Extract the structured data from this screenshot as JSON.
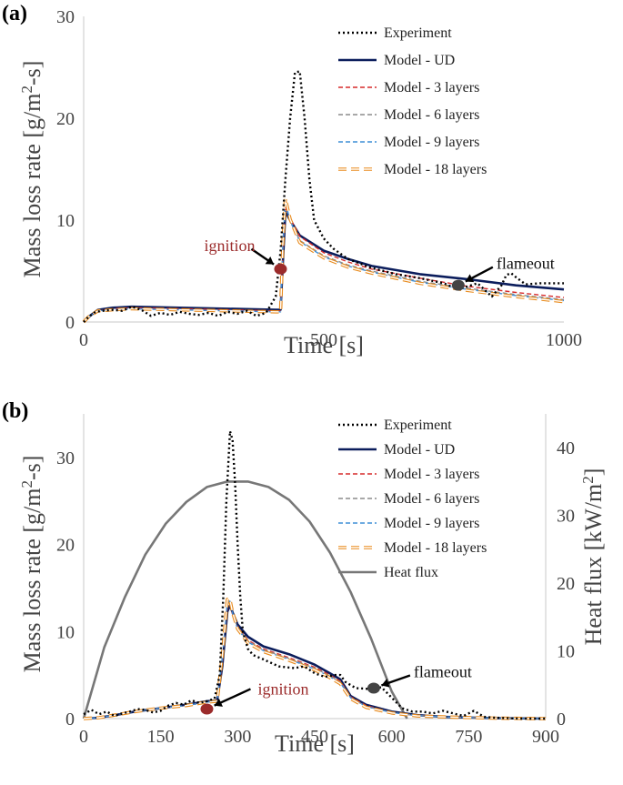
{
  "chart_data": [
    {
      "panel": "(a)",
      "type": "line",
      "xlabel": "Time [s]",
      "ylabel": "Mass loss rate [g/m2-s]",
      "ylabel_parts": [
        "Mass loss rate [g/m",
        "2",
        "-s]"
      ],
      "xlim": [
        0,
        1000
      ],
      "ylim": [
        0,
        30
      ],
      "xticks": [
        0,
        500,
        1000
      ],
      "yticks": [
        0,
        10,
        20,
        30
      ],
      "legend_position": "top-right",
      "series": [
        {
          "name": "Experiment",
          "color": "#000000",
          "style": "dotted",
          "x": [
            0,
            10,
            25,
            40,
            60,
            80,
            100,
            120,
            140,
            160,
            180,
            200,
            220,
            240,
            260,
            280,
            300,
            320,
            340,
            360,
            380,
            400,
            410,
            420,
            430,
            440,
            450,
            460,
            470,
            480,
            500,
            520,
            550,
            600,
            650,
            700,
            750,
            780,
            820,
            850,
            870,
            880,
            890,
            900,
            920,
            950,
            1000
          ],
          "y": [
            0,
            0.5,
            1.0,
            1.1,
            1.2,
            1.1,
            1.5,
            1.2,
            0.6,
            0.9,
            0.7,
            1.0,
            0.8,
            0.7,
            0.9,
            0.6,
            1.0,
            0.8,
            1.1,
            0.6,
            0.9,
            2.5,
            7,
            14,
            20,
            24.5,
            24.6,
            20,
            14,
            10,
            8.2,
            7.2,
            6.2,
            5.3,
            4.7,
            4.3,
            3.8,
            3.2,
            3.8,
            2.5,
            3.6,
            4.6,
            4.8,
            4.4,
            3.7,
            3.8,
            3.8
          ]
        },
        {
          "name": "Model - UD",
          "color": "#0b1d5c",
          "style": "solid",
          "x": [
            0,
            10,
            30,
            60,
            100,
            200,
            300,
            400,
            410,
            415,
            420,
            430,
            450,
            500,
            550,
            600,
            700,
            800,
            900,
            1000
          ],
          "y": [
            0,
            0.5,
            1.2,
            1.4,
            1.5,
            1.4,
            1.3,
            1.2,
            1.2,
            6,
            10.8,
            10,
            8.5,
            7.0,
            6.2,
            5.5,
            4.7,
            4.2,
            3.6,
            3.2
          ]
        },
        {
          "name": "Model - 3 layers",
          "color": "#d62a2a",
          "style": "dashed",
          "x": [
            0,
            10,
            30,
            60,
            100,
            200,
            300,
            400,
            410,
            415,
            420,
            430,
            450,
            500,
            550,
            600,
            700,
            800,
            900,
            1000
          ],
          "y": [
            0,
            0.5,
            1.1,
            1.3,
            1.4,
            1.3,
            1.2,
            1.1,
            1.1,
            7,
            11.3,
            10.2,
            8.4,
            6.8,
            5.9,
            5.2,
            4.3,
            3.5,
            2.9,
            2.4
          ]
        },
        {
          "name": "Model - 6 layers",
          "color": "#8c8c8c",
          "style": "dashed",
          "x": [
            0,
            10,
            30,
            60,
            100,
            200,
            300,
            400,
            410,
            415,
            420,
            430,
            450,
            500,
            550,
            600,
            700,
            800,
            900,
            1000
          ],
          "y": [
            0,
            0.5,
            1.1,
            1.2,
            1.3,
            1.2,
            1.1,
            1.0,
            1.0,
            7.5,
            11.6,
            10.0,
            8.0,
            6.5,
            5.6,
            5.0,
            4.0,
            3.3,
            2.7,
            2.2
          ]
        },
        {
          "name": "Model - 9 layers",
          "color": "#3f8fd6",
          "style": "dashed",
          "x": [
            0,
            10,
            30,
            60,
            100,
            200,
            300,
            400,
            410,
            415,
            420,
            430,
            450,
            500,
            550,
            600,
            700,
            800,
            900,
            1000
          ],
          "y": [
            0,
            0.5,
            1.1,
            1.2,
            1.3,
            1.2,
            1.1,
            1.0,
            1.0,
            7.8,
            11.8,
            9.9,
            7.9,
            6.4,
            5.5,
            4.9,
            3.9,
            3.2,
            2.6,
            2.1
          ]
        },
        {
          "name": "Model - 18 layers",
          "color": "#e88a1c",
          "style": "dashed-double",
          "x": [
            0,
            10,
            30,
            60,
            100,
            200,
            300,
            400,
            410,
            415,
            420,
            430,
            450,
            500,
            550,
            600,
            700,
            800,
            900,
            1000
          ],
          "y": [
            0,
            0.5,
            1.1,
            1.2,
            1.3,
            1.2,
            1.1,
            1.0,
            1.0,
            8,
            12.1,
            10.1,
            7.8,
            6.3,
            5.4,
            4.8,
            3.8,
            3.1,
            2.5,
            2.0
          ]
        }
      ],
      "annotations": [
        {
          "text": "ignition",
          "color": "#9b2b2b",
          "point": [
            410,
            5.2
          ],
          "marker_color": "#9b2b2b"
        },
        {
          "text": "flameout",
          "color": "#111111",
          "point": [
            780,
            3.6
          ],
          "marker_color": "#444444"
        }
      ]
    },
    {
      "panel": "(b)",
      "type": "line",
      "xlabel": "Time [s]",
      "ylabel": "Mass loss rate [g/m2-s]",
      "ylabel_parts": [
        "Mass loss rate [g/m",
        "2",
        "-s]"
      ],
      "y2label": "Heat flux [kW/m2]",
      "y2label_parts": [
        "Heat flux [kW/m",
        "2",
        "]"
      ],
      "xlim": [
        0,
        900
      ],
      "ylim": [
        0,
        35
      ],
      "y2lim": [
        0,
        45
      ],
      "xticks": [
        0,
        150,
        300,
        450,
        600,
        750,
        900
      ],
      "yticks": [
        0,
        10,
        20,
        30
      ],
      "y2ticks": [
        0,
        10,
        20,
        30,
        40
      ],
      "legend_position": "top-right",
      "series": [
        {
          "name": "Experiment",
          "color": "#000000",
          "style": "dotted",
          "axis": "left",
          "x": [
            0,
            15,
            30,
            45,
            60,
            75,
            90,
            105,
            120,
            135,
            150,
            165,
            180,
            195,
            210,
            225,
            240,
            255,
            265,
            272,
            278,
            285,
            290,
            295,
            300,
            305,
            310,
            320,
            330,
            350,
            380,
            410,
            430,
            450,
            470,
            490,
            500,
            510,
            530,
            560,
            580,
            600,
            620,
            640,
            660,
            680,
            700,
            720,
            740,
            760,
            780,
            800,
            850,
            900
          ],
          "y": [
            0.5,
            1.0,
            0.5,
            0.8,
            0.3,
            0.6,
            0.8,
            1.1,
            1.0,
            0.7,
            0.9,
            1.5,
            1.8,
            1.6,
            2.1,
            1.8,
            2.0,
            2.3,
            5,
            14,
            25,
            33,
            32,
            27,
            20,
            14,
            10,
            8,
            7.3,
            6.8,
            6.0,
            5.8,
            6.0,
            5.2,
            4.8,
            5.0,
            5.0,
            4.2,
            3.5,
            3.4,
            3.6,
            2.4,
            1.2,
            0.8,
            0.8,
            0.6,
            0.9,
            0.6,
            0.3,
            0.9,
            0.2,
            0.1,
            0,
            0
          ]
        },
        {
          "name": "Model - UD",
          "color": "#0b1d5c",
          "style": "solid",
          "axis": "left",
          "x": [
            0,
            30,
            60,
            100,
            150,
            200,
            240,
            260,
            270,
            280,
            285,
            290,
            300,
            320,
            350,
            400,
            450,
            480,
            500,
            520,
            550,
            600,
            650,
            700,
            800,
            900
          ],
          "y": [
            0,
            0.1,
            0.4,
            0.8,
            1.2,
            1.6,
            2.0,
            2.1,
            6,
            12.3,
            13.0,
            12.2,
            10.8,
            9.4,
            8.3,
            7.4,
            6.2,
            5.2,
            4.5,
            2.6,
            1.6,
            0.8,
            0.4,
            0.2,
            0.05,
            0
          ]
        },
        {
          "name": "Model - 3 layers",
          "color": "#d62a2a",
          "style": "dashed",
          "axis": "left",
          "x": [
            0,
            30,
            60,
            100,
            150,
            200,
            240,
            260,
            270,
            280,
            285,
            290,
            300,
            320,
            350,
            400,
            450,
            480,
            500,
            520,
            550,
            600,
            650,
            700,
            800,
            900
          ],
          "y": [
            0,
            0.1,
            0.4,
            0.8,
            1.2,
            1.5,
            1.9,
            2.0,
            6.5,
            12.8,
            13.1,
            12.0,
            10.5,
            9.0,
            8.0,
            7.0,
            5.9,
            5.0,
            4.3,
            2.5,
            1.5,
            0.7,
            0.35,
            0.2,
            0.05,
            0
          ]
        },
        {
          "name": "Model - 6 layers",
          "color": "#8c8c8c",
          "style": "dashed",
          "axis": "left",
          "x": [
            0,
            30,
            60,
            100,
            150,
            200,
            240,
            260,
            270,
            280,
            285,
            290,
            300,
            320,
            350,
            400,
            450,
            480,
            500,
            520,
            550,
            600,
            650,
            700,
            800,
            900
          ],
          "y": [
            0,
            0.1,
            0.4,
            0.8,
            1.2,
            1.5,
            1.9,
            2.0,
            6.8,
            13.2,
            13.4,
            12.1,
            10.4,
            8.9,
            7.9,
            6.9,
            5.8,
            4.9,
            4.2,
            2.4,
            1.4,
            0.7,
            0.35,
            0.2,
            0.05,
            0
          ]
        },
        {
          "name": "Model - 9 layers",
          "color": "#3f8fd6",
          "style": "dashed",
          "axis": "left",
          "x": [
            0,
            30,
            60,
            100,
            150,
            200,
            240,
            260,
            270,
            280,
            285,
            290,
            300,
            320,
            350,
            400,
            450,
            480,
            500,
            520,
            550,
            600,
            650,
            700,
            800,
            900
          ],
          "y": [
            0,
            0.1,
            0.4,
            0.8,
            1.2,
            1.5,
            1.9,
            2.0,
            7.0,
            13.4,
            13.5,
            12.1,
            10.3,
            8.8,
            7.8,
            6.8,
            5.7,
            4.8,
            4.1,
            2.4,
            1.4,
            0.7,
            0.35,
            0.2,
            0.05,
            0
          ]
        },
        {
          "name": "Model - 18 layers",
          "color": "#e88a1c",
          "style": "dashed-double",
          "axis": "left",
          "x": [
            0,
            30,
            60,
            100,
            150,
            200,
            240,
            260,
            270,
            280,
            285,
            290,
            300,
            320,
            350,
            400,
            450,
            480,
            500,
            520,
            550,
            600,
            650,
            700,
            800,
            900
          ],
          "y": [
            0,
            0.1,
            0.4,
            0.8,
            1.2,
            1.5,
            1.9,
            2.0,
            7.2,
            13.7,
            13.6,
            12.2,
            10.3,
            8.7,
            7.7,
            6.7,
            5.6,
            4.7,
            4.0,
            2.3,
            1.3,
            0.65,
            0.3,
            0.2,
            0.05,
            0
          ]
        },
        {
          "name": "Heat flux",
          "color": "#777777",
          "style": "solid",
          "axis": "right",
          "x": [
            0,
            40,
            80,
            120,
            160,
            200,
            240,
            280,
            320,
            360,
            400,
            440,
            480,
            520,
            560,
            600,
            630
          ],
          "y": [
            0,
            10.5,
            17.9,
            24.2,
            28.8,
            32.0,
            34.2,
            35.0,
            35.0,
            34.2,
            32.3,
            29.1,
            24.5,
            18.7,
            11.8,
            4.0,
            0
          ]
        }
      ],
      "annotations": [
        {
          "text": "ignition",
          "color": "#9b2b2b",
          "point": [
            240,
            1.1
          ],
          "marker_color": "#9b2b2b"
        },
        {
          "text": "flameout",
          "color": "#111111",
          "point": [
            565,
            3.5
          ],
          "marker_color": "#444444"
        }
      ]
    }
  ]
}
